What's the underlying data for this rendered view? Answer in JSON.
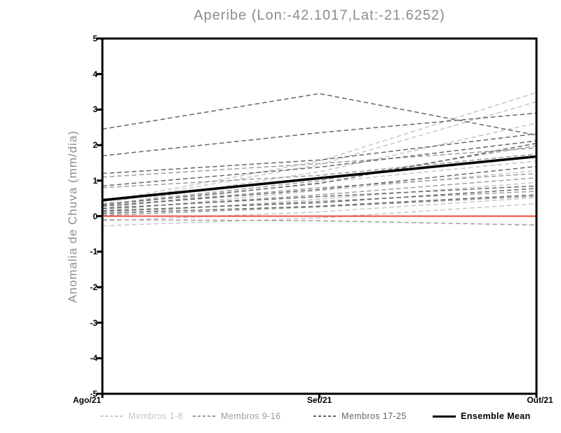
{
  "title": "Aperibe (Lon:-42.1017,Lat:-21.6252)",
  "chart_data": {
    "type": "line",
    "title": "Aperibe (Lon:-42.1017,Lat:-21.6252)",
    "xlabel": "",
    "ylabel": "Anomalia de Chuva (mm/dia)",
    "x_categories": [
      "Ago/21",
      "Set/21",
      "Out/21"
    ],
    "ylim": [
      -5,
      5
    ],
    "yticks": [
      5,
      4,
      3,
      2,
      1,
      0,
      -1,
      -2,
      -3,
      -4,
      -5
    ],
    "grid": false,
    "legend_position": "bottom",
    "colors": {
      "title": "#8d8d8d",
      "axis_label": "#8d8d8d",
      "axis": "#000000",
      "tick_labels": "#000000",
      "members_1_8": "#c6c6c6",
      "members_9_16": "#9c9c9c",
      "members_17_25": "#666666",
      "ensemble_mean": "#000000",
      "zero_line": "#f0473b"
    },
    "groups": {
      "Membros 1-8": {
        "color": "#c6c6c6",
        "dash": true,
        "width": 1.5
      },
      "Membros 9-16": {
        "color": "#9c9c9c",
        "dash": true,
        "width": 1.5
      },
      "Membros 17-25": {
        "color": "#666666",
        "dash": true,
        "width": 1.5
      },
      "zero-line": {
        "color": "#f0473b",
        "dash": false,
        "width": 2
      },
      "ensemble-mean": {
        "color": "#000000",
        "dash": false,
        "width": 3.6
      }
    },
    "series": [
      {
        "name": "Membro 1",
        "group": "Membros 1-8",
        "values": [
          0.4,
          1.55,
          3.48
        ]
      },
      {
        "name": "Membro 2",
        "group": "Membros 1-8",
        "values": [
          0.35,
          1.45,
          3.22
        ]
      },
      {
        "name": "Membro 3",
        "group": "Membros 1-8",
        "values": [
          0.3,
          1.25,
          2.62
        ]
      },
      {
        "name": "Membro 4",
        "group": "Membros 1-8",
        "values": [
          0.22,
          0.95,
          1.55
        ]
      },
      {
        "name": "Membro 5",
        "group": "Membros 1-8",
        "values": [
          0.15,
          0.72,
          1.28
        ]
      },
      {
        "name": "Membro 6",
        "group": "Membros 1-8",
        "values": [
          0.05,
          0.48,
          0.95
        ]
      },
      {
        "name": "Membro 7",
        "group": "Membros 1-8",
        "values": [
          -0.13,
          0.12,
          0.52
        ]
      },
      {
        "name": "Membro 8",
        "group": "Membros 1-8",
        "values": [
          -0.27,
          -0.05,
          0.35
        ]
      },
      {
        "name": "Membro 9",
        "group": "Membros 9-16",
        "values": [
          1.1,
          1.48,
          1.92
        ]
      },
      {
        "name": "Membro 10",
        "group": "Membros 9-16",
        "values": [
          0.8,
          1.15,
          1.75
        ]
      },
      {
        "name": "Membro 11",
        "group": "Membros 9-16",
        "values": [
          0.33,
          1.0,
          1.98
        ]
      },
      {
        "name": "Membro 12",
        "group": "Membros 9-16",
        "values": [
          0.28,
          0.8,
          1.2
        ]
      },
      {
        "name": "Membro 13",
        "group": "Membros 9-16",
        "values": [
          0.2,
          0.6,
          1.08
        ]
      },
      {
        "name": "Membro 14",
        "group": "Membros 9-16",
        "values": [
          0.12,
          0.42,
          0.7
        ]
      },
      {
        "name": "Membro 15",
        "group": "Membros 9-16",
        "values": [
          0.02,
          0.26,
          0.56
        ]
      },
      {
        "name": "Membro 16",
        "group": "Membros 9-16",
        "values": [
          -0.1,
          -0.13,
          -0.25
        ]
      },
      {
        "name": "Membro 17",
        "group": "Membros 17-25",
        "values": [
          2.45,
          3.45,
          2.28
        ]
      },
      {
        "name": "Membro 18",
        "group": "Membros 17-25",
        "values": [
          1.7,
          2.35,
          2.9
        ]
      },
      {
        "name": "Membro 19",
        "group": "Membros 17-25",
        "values": [
          1.2,
          1.58,
          2.32
        ]
      },
      {
        "name": "Membro 20",
        "group": "Membros 17-25",
        "values": [
          0.85,
          1.38,
          2.12
        ]
      },
      {
        "name": "Membro 21",
        "group": "Membros 17-25",
        "values": [
          0.32,
          0.92,
          2.05
        ]
      },
      {
        "name": "Membro 22",
        "group": "Membros 17-25",
        "values": [
          0.28,
          0.75,
          1.4
        ]
      },
      {
        "name": "Membro 23",
        "group": "Membros 17-25",
        "values": [
          0.22,
          0.55,
          0.85
        ]
      },
      {
        "name": "Membro 24",
        "group": "Membros 17-25",
        "values": [
          0.15,
          0.38,
          0.78
        ]
      },
      {
        "name": "Membro 25",
        "group": "Membros 17-25",
        "values": [
          0.08,
          0.28,
          0.6
        ]
      },
      {
        "name": "Zero line",
        "group": "zero-line",
        "values": [
          0,
          0,
          0
        ]
      },
      {
        "name": "Ensemble Mean",
        "group": "ensemble-mean",
        "values": [
          0.45,
          1.07,
          1.68
        ]
      }
    ],
    "legend": [
      {
        "label": "Membros 1-8",
        "color": "#c6c6c6",
        "dash": true
      },
      {
        "label": "Membros 9-16",
        "color": "#9c9c9c",
        "dash": true
      },
      {
        "label": "Membros 17-25",
        "color": "#666666",
        "dash": true
      },
      {
        "label": "Ensemble Mean",
        "color": "#000000",
        "dash": false
      }
    ]
  }
}
